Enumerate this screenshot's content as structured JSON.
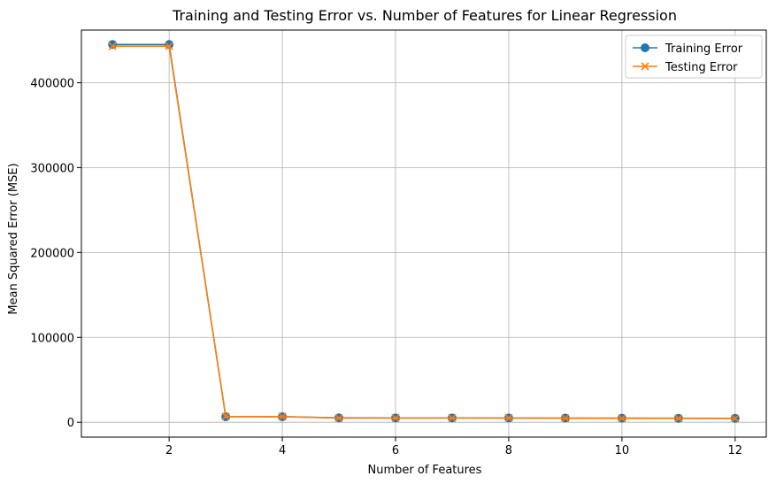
{
  "chart_data": {
    "type": "line",
    "title": "Training and Testing Error vs. Number of Features for Linear Regression",
    "xlabel": "Number of Features",
    "ylabel": "Mean Squared Error (MSE)",
    "xlim": [
      0.45,
      12.55
    ],
    "ylim": [
      -17500,
      462000
    ],
    "xticks": [
      2,
      4,
      6,
      8,
      10,
      12
    ],
    "yticks": [
      0,
      100000,
      200000,
      300000,
      400000
    ],
    "grid": true,
    "legend_position": "top-right",
    "x": [
      1,
      2,
      3,
      4,
      5,
      6,
      7,
      8,
      9,
      10,
      11,
      12
    ],
    "series": [
      {
        "name": "Training Error",
        "marker": "circle",
        "color": "#1f77b4",
        "values": [
          445000,
          445000,
          6500,
          6500,
          5200,
          5100,
          5100,
          5000,
          4900,
          4800,
          4700,
          4600
        ]
      },
      {
        "name": "Testing Error",
        "marker": "x",
        "color": "#ff7f0e",
        "values": [
          443000,
          443000,
          6800,
          6700,
          5000,
          5000,
          5000,
          5000,
          4700,
          4600,
          4500,
          4500
        ]
      }
    ]
  }
}
